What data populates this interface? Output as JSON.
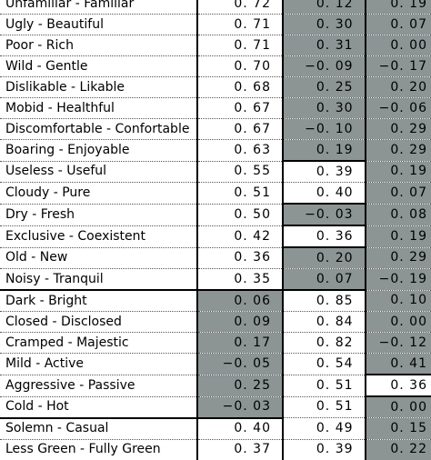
{
  "rows": [
    {
      "label": "Unfamiliar - Familiar",
      "f1": "0. 72",
      "f2": "0. 12",
      "f3": "0. 19",
      "hl": [
        false,
        true,
        true
      ]
    },
    {
      "label": "Ugly - Beautiful",
      "f1": "0. 71",
      "f2": "0. 30",
      "f3": "0. 07",
      "hl": [
        false,
        true,
        true
      ]
    },
    {
      "label": "Poor - Rich",
      "f1": "0. 71",
      "f2": "0. 31",
      "f3": "0. 00",
      "hl": [
        false,
        true,
        true
      ]
    },
    {
      "label": "Wild - Gentle",
      "f1": "0. 70",
      "f2": "−0. 09",
      "f3": "−0. 17",
      "hl": [
        false,
        true,
        true
      ]
    },
    {
      "label": "Dislikable - Likable",
      "f1": "0. 68",
      "f2": "0. 25",
      "f3": "0. 20",
      "hl": [
        false,
        true,
        true
      ]
    },
    {
      "label": "Mobid - Healthful",
      "f1": "0. 67",
      "f2": "0. 30",
      "f3": "−0. 06",
      "hl": [
        false,
        true,
        true
      ]
    },
    {
      "label": "Discomfortable - Confortable",
      "f1": "0. 67",
      "f2": "−0. 10",
      "f3": "0. 29",
      "hl": [
        false,
        true,
        true
      ]
    },
    {
      "label": "Boaring - Enjoyable",
      "f1": "0. 63",
      "f2": "0. 19",
      "f3": "0. 29",
      "hl": [
        false,
        true,
        true
      ]
    },
    {
      "label": "Useless - Useful",
      "f1": "0. 55",
      "f2": "0. 39",
      "f3": "0. 19",
      "hl": [
        false,
        false,
        true
      ]
    },
    {
      "label": "Cloudy - Pure",
      "f1": "0. 51",
      "f2": "0. 40",
      "f3": "0. 07",
      "hl": [
        false,
        false,
        true
      ]
    },
    {
      "label": "Dry - Fresh",
      "f1": "0. 50",
      "f2": "−0. 03",
      "f3": "0. 08",
      "hl": [
        false,
        true,
        true
      ]
    },
    {
      "label": "Exclusive - Coexistent",
      "f1": "0. 42",
      "f2": "0. 36",
      "f3": "0. 19",
      "hl": [
        false,
        false,
        true
      ]
    },
    {
      "label": "Old - New",
      "f1": "0. 36",
      "f2": "0. 20",
      "f3": "0. 29",
      "hl": [
        false,
        true,
        true
      ]
    },
    {
      "label": "Noisy - Tranquil",
      "f1": "0. 35",
      "f2": "0. 07",
      "f3": "−0. 19",
      "hl": [
        false,
        true,
        true
      ]
    },
    {
      "label": "Dark - Bright",
      "f1": "0. 06",
      "f2": "0. 85",
      "f3": "0. 10",
      "hl": [
        true,
        false,
        true
      ]
    },
    {
      "label": "Closed - Disclosed",
      "f1": "0. 09",
      "f2": "0. 84",
      "f3": "0. 00",
      "hl": [
        true,
        false,
        true
      ]
    },
    {
      "label": "Cramped - Majestic",
      "f1": "0. 17",
      "f2": "0. 82",
      "f3": "−0. 12",
      "hl": [
        true,
        false,
        true
      ]
    },
    {
      "label": "Mild - Active",
      "f1": "−0. 05",
      "f2": "0. 54",
      "f3": "0. 41",
      "hl": [
        true,
        false,
        true
      ]
    },
    {
      "label": "Aggressive - Passive",
      "f1": "0. 25",
      "f2": "0. 51",
      "f3": "0. 36",
      "hl": [
        true,
        false,
        false
      ]
    },
    {
      "label": "Cold - Hot",
      "f1": "−0. 03",
      "f2": "0. 51",
      "f3": "0. 00",
      "hl": [
        true,
        false,
        true
      ]
    },
    {
      "label": "Solemn - Casual",
      "f1": "0. 40",
      "f2": "0. 49",
      "f3": "0. 15",
      "hl": [
        false,
        false,
        true
      ]
    },
    {
      "label": "Less Green - Fully Green",
      "f1": "0. 37",
      "f2": "0. 39",
      "f3": "0. 22",
      "hl": [
        false,
        false,
        true
      ]
    }
  ],
  "colors": {
    "highlight": "#8c9494",
    "border": "#000000"
  }
}
